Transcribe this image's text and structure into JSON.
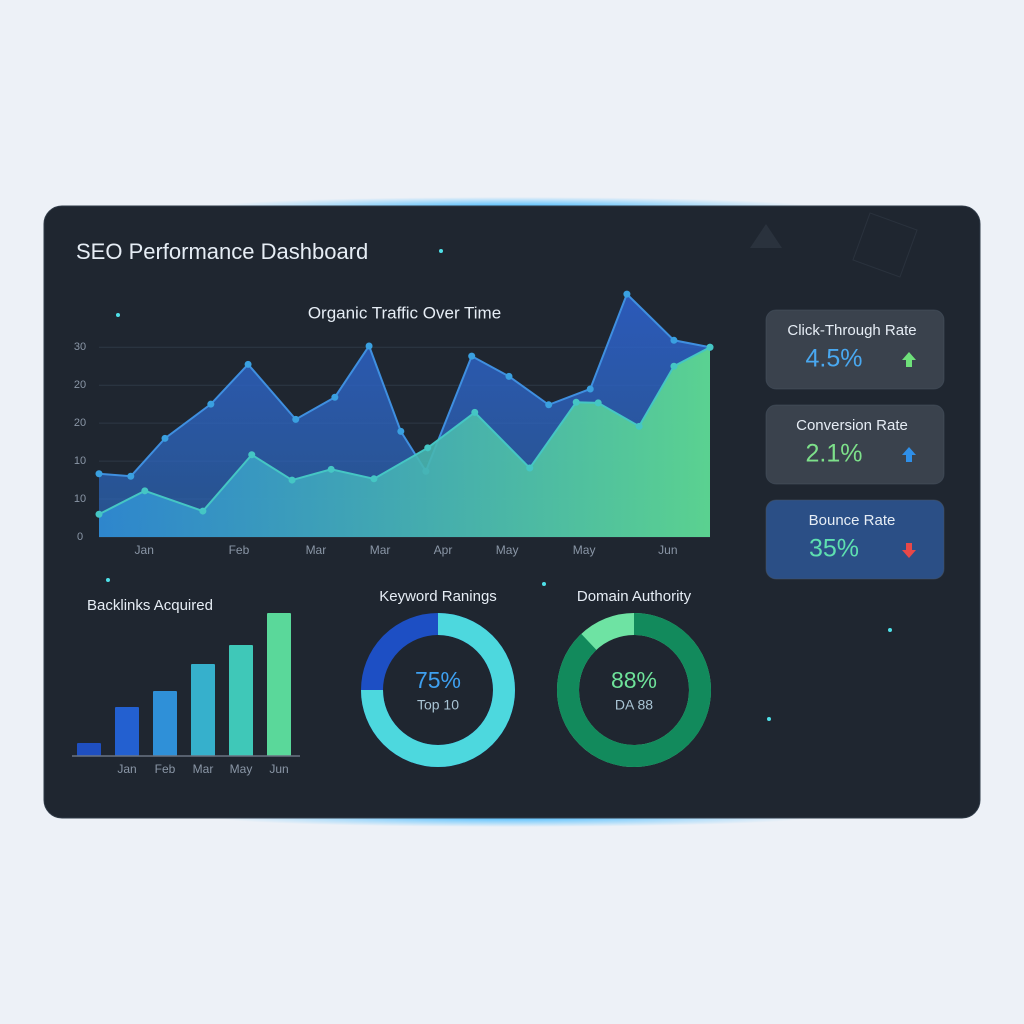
{
  "title": "SEO Performance Dashboard",
  "chart_data": [
    {
      "type": "area",
      "title": "Organic Traffic Over Time",
      "xlim": [
        0,
        100
      ],
      "xticks": [
        {
          "value": 7.4,
          "label": "Jan"
        },
        {
          "value": 22.9,
          "label": "Feb"
        },
        {
          "value": 35.5,
          "label": "Mar"
        },
        {
          "value": 46,
          "label": "Mar"
        },
        {
          "value": 56.3,
          "label": "Apr"
        },
        {
          "value": 66.8,
          "label": "May"
        },
        {
          "value": 79.4,
          "label": "May"
        },
        {
          "value": 93.1,
          "label": "Jun"
        }
      ],
      "ylim": [
        0,
        40
      ],
      "yticks": [
        0,
        {
          "value": 6,
          "label": "10"
        },
        {
          "value": 12,
          "label": "10"
        },
        {
          "value": 18,
          "label": "20"
        },
        {
          "value": 24,
          "label": "20"
        },
        30
      ],
      "grid": true,
      "series": [
        {
          "color": "#2d5fc8",
          "x": [
            0,
            5.2,
            10.8,
            18.3,
            24.4,
            32.2,
            38.6,
            44.2,
            49.4,
            53.5,
            61,
            67.1,
            73.6,
            80.4,
            86.4,
            94.1,
            100
          ],
          "values": [
            10,
            9.6,
            15.6,
            21,
            27.3,
            18.6,
            22.1,
            30.2,
            16.7,
            10.4,
            28.6,
            25.4,
            20.9,
            23.4,
            38.4,
            31.1,
            30
          ]
        },
        {
          "color": "#45c6c4",
          "x": [
            0,
            7.5,
            17,
            25,
            31.6,
            38,
            45,
            53.8,
            61.5,
            70.5,
            78.1,
            81.7,
            88.4,
            94.1,
            100
          ],
          "values": [
            3.6,
            7.3,
            4.1,
            13,
            9,
            10.7,
            9.2,
            14.1,
            19.7,
            10.9,
            21.3,
            21.2,
            17.5,
            27,
            30
          ]
        }
      ]
    },
    {
      "type": "bar",
      "title": "Backlinks Acquired",
      "categories": [
        null,
        "Jan",
        "Feb",
        "Mar",
        "May",
        "Jun"
      ],
      "values": [
        13,
        49,
        65,
        92,
        111,
        143
      ],
      "colors": [
        "#1f4fc0",
        "#2360d0",
        "#2f90d8",
        "#36b0cc",
        "#3fc8b8",
        "#5ad89a"
      ],
      "ylim": [
        0,
        150
      ]
    },
    {
      "type": "donut",
      "title": "Keyword Ranings",
      "values": [
        75
      ],
      "value_labels": [
        "75%"
      ],
      "subtitle": "Top 10",
      "colors": [
        "#4dd8de"
      ],
      "track_color": "#1d4fc4",
      "label_color": "#3ea0f0"
    },
    {
      "type": "donut",
      "title": "Domain Authority",
      "values": [
        88
      ],
      "value_labels": [
        "88%"
      ],
      "subtitle": "DA 88",
      "colors": [
        "#128a5c"
      ],
      "track_color": "#6ee3a3",
      "label_color": "#6ee39a"
    }
  ],
  "kpis": [
    {
      "label": "Click-Through Rate",
      "value": "4.5%",
      "trend": "up",
      "value_color": "#49a8f0",
      "arrow_color": "#6ee07a",
      "background": "#3a424d"
    },
    {
      "label": "Conversion Rate",
      "value": "2.1%",
      "trend": "up",
      "value_color": "#7de08a",
      "arrow_color": "#2f8fe8",
      "background": "#3a424d"
    },
    {
      "label": "Bounce Rate",
      "value": "35%",
      "trend": "down",
      "value_color": "#5ee0b0",
      "arrow_color": "#e84848",
      "background": "#2b4f86"
    }
  ]
}
